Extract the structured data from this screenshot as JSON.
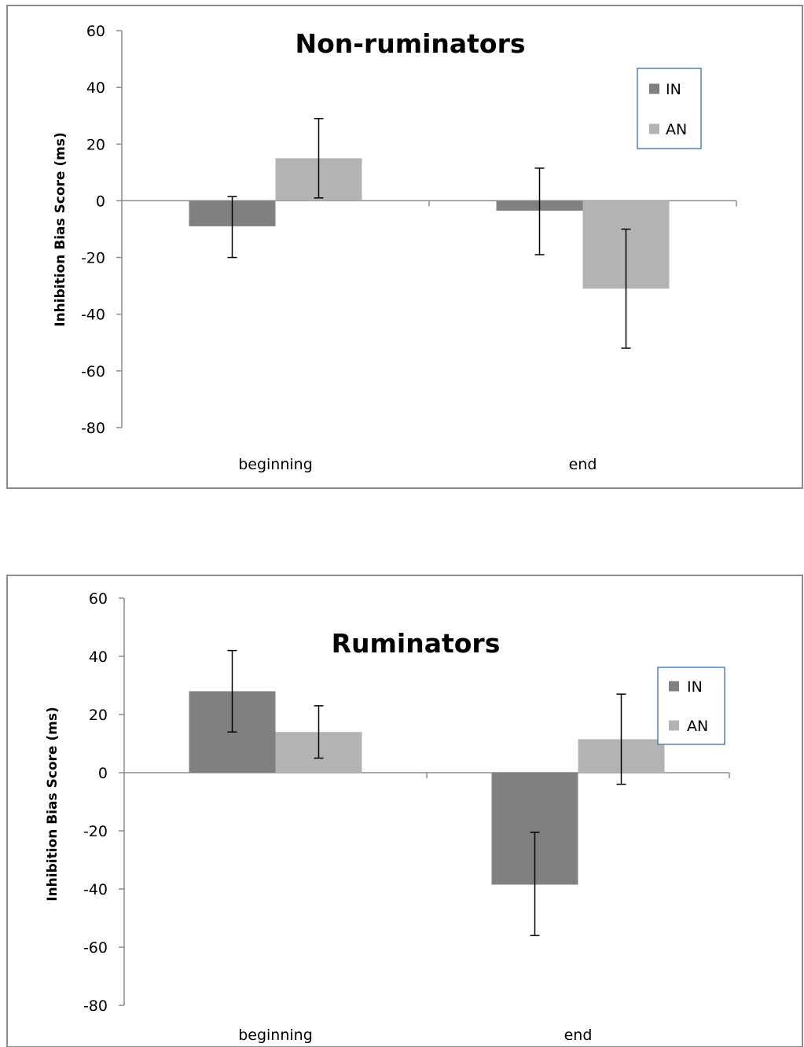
{
  "chart_data": [
    {
      "type": "bar",
      "title": "Non-ruminators",
      "xlabel": "",
      "ylabel": "Inhibition Bias Score (ms)",
      "categories": [
        "beginning",
        "end"
      ],
      "ylim": [
        -80,
        60
      ],
      "yticks": [
        "60",
        "40",
        "20",
        "0",
        "-20",
        "-40",
        "-60",
        "-80"
      ],
      "series": [
        {
          "name": "IN",
          "color": "#808080",
          "values": [
            -9,
            -3.5
          ],
          "error_low": [
            -20,
            -19
          ],
          "error_high": [
            1.5,
            11.5
          ]
        },
        {
          "name": "AN",
          "color": "#b3b3b3",
          "values": [
            15,
            -31
          ],
          "error_low": [
            1,
            -52
          ],
          "error_high": [
            29,
            -10
          ]
        }
      ],
      "legend": "top-right"
    },
    {
      "type": "bar",
      "title": "Ruminators",
      "xlabel": "",
      "ylabel": "Inhibition Bias Score (ms)",
      "categories": [
        "beginning",
        "end"
      ],
      "ylim": [
        -80,
        60
      ],
      "yticks": [
        "60",
        "40",
        "20",
        "0",
        "-20",
        "-40",
        "-60",
        "-80"
      ],
      "series": [
        {
          "name": "IN",
          "color": "#808080",
          "values": [
            28,
            -38.5
          ],
          "error_low": [
            14,
            -56
          ],
          "error_high": [
            42,
            -20.5
          ]
        },
        {
          "name": "AN",
          "color": "#b3b3b3",
          "values": [
            14,
            11.5
          ],
          "error_low": [
            5,
            -4
          ],
          "error_high": [
            23,
            27
          ]
        }
      ],
      "legend": "top-right"
    }
  ]
}
